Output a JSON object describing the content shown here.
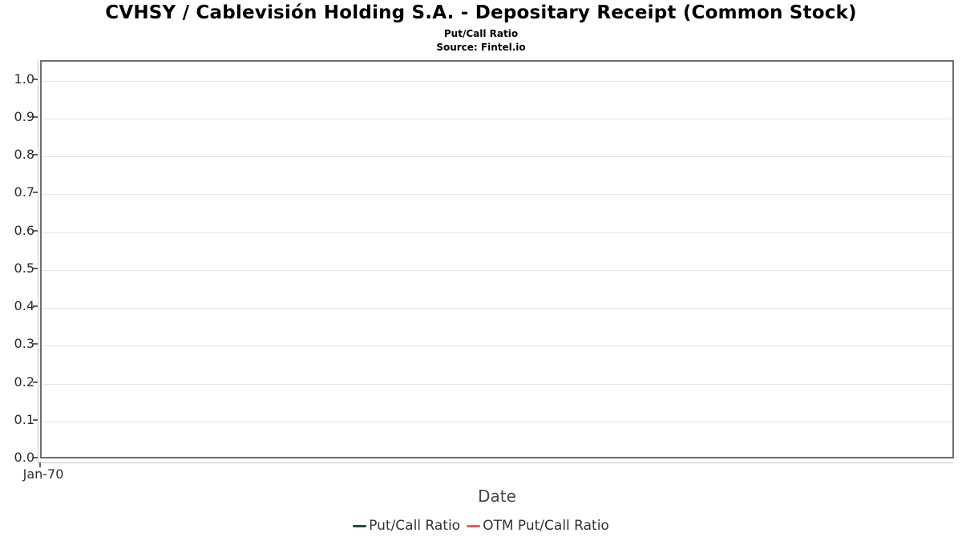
{
  "header": {
    "title": "CVHSY / Cablevisión Holding S.A. - Depositary Receipt (Common Stock)",
    "subtitle": "Put/Call Ratio",
    "source": "Source: Fintel.io"
  },
  "chart_data": {
    "type": "line",
    "title": "CVHSY / Cablevisión Holding S.A. - Depositary Receipt (Common Stock)",
    "subtitle": "Put/Call Ratio",
    "source_note": "Source: Fintel.io",
    "xlabel": "Date",
    "ylabel": "",
    "x_ticks": [
      "Jan-70"
    ],
    "y_ticks": [
      "0.0",
      "0.1",
      "0.2",
      "0.3",
      "0.4",
      "0.5",
      "0.6",
      "0.7",
      "0.8",
      "0.9",
      "1.0"
    ],
    "ylim": [
      0,
      1.05
    ],
    "grid": "horizontal",
    "legend_position": "bottom",
    "series": [
      {
        "name": "Put/Call Ratio",
        "color": "#1e512c",
        "x": [],
        "values": []
      },
      {
        "name": "OTM Put/Call Ratio",
        "color": "#f25a52",
        "x": [],
        "values": []
      }
    ]
  },
  "colors": {
    "plot_border": "#6e6e6e",
    "gridline": "#e4e4e4",
    "axis_line": "#c9c9c9",
    "tick": "#5f5f5f",
    "axis_text": "#2d2d2d",
    "legend_text": "#333333"
  }
}
